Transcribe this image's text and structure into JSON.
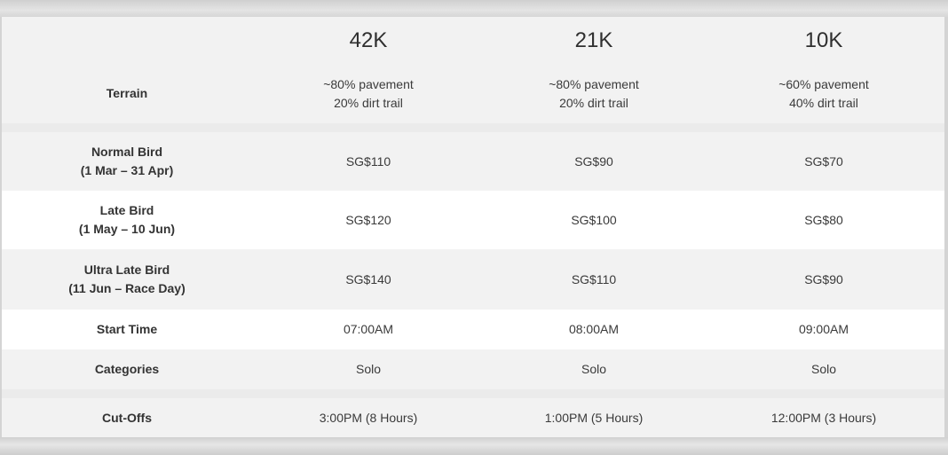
{
  "header": {
    "col1": "42K",
    "col2": "21K",
    "col3": "10K"
  },
  "rows": [
    {
      "label": [
        "Terrain"
      ],
      "v1": [
        "~80% pavement",
        "20% dirt trail"
      ],
      "v2": [
        "~80% pavement",
        "20% dirt trail"
      ],
      "v3": [
        "~60% pavement",
        "40% dirt trail"
      ]
    },
    {
      "label": [
        "Normal Bird",
        "(1 Mar – 31 Apr)"
      ],
      "v1": [
        "SG$110"
      ],
      "v2": [
        "SG$90"
      ],
      "v3": [
        "SG$70"
      ]
    },
    {
      "label": [
        "Late Bird",
        "(1 May – 10 Jun)"
      ],
      "v1": [
        "SG$120"
      ],
      "v2": [
        "SG$100"
      ],
      "v3": [
        "SG$80"
      ]
    },
    {
      "label": [
        "Ultra Late Bird",
        "(11 Jun – Race Day)"
      ],
      "v1": [
        "SG$140"
      ],
      "v2": [
        "SG$110"
      ],
      "v3": [
        "SG$90"
      ]
    },
    {
      "label": [
        "Start Time"
      ],
      "v1": [
        "07:00AM"
      ],
      "v2": [
        "08:00AM"
      ],
      "v3": [
        "09:00AM"
      ]
    },
    {
      "label": [
        "Categories"
      ],
      "v1": [
        "Solo"
      ],
      "v2": [
        "Solo"
      ],
      "v3": [
        "Solo"
      ]
    },
    {
      "label": [
        "Cut-Offs"
      ],
      "v1": [
        "3:00PM (8 Hours)"
      ],
      "v2": [
        "1:00PM (5 Hours)"
      ],
      "v3": [
        "12:00PM (3 Hours)"
      ]
    }
  ]
}
